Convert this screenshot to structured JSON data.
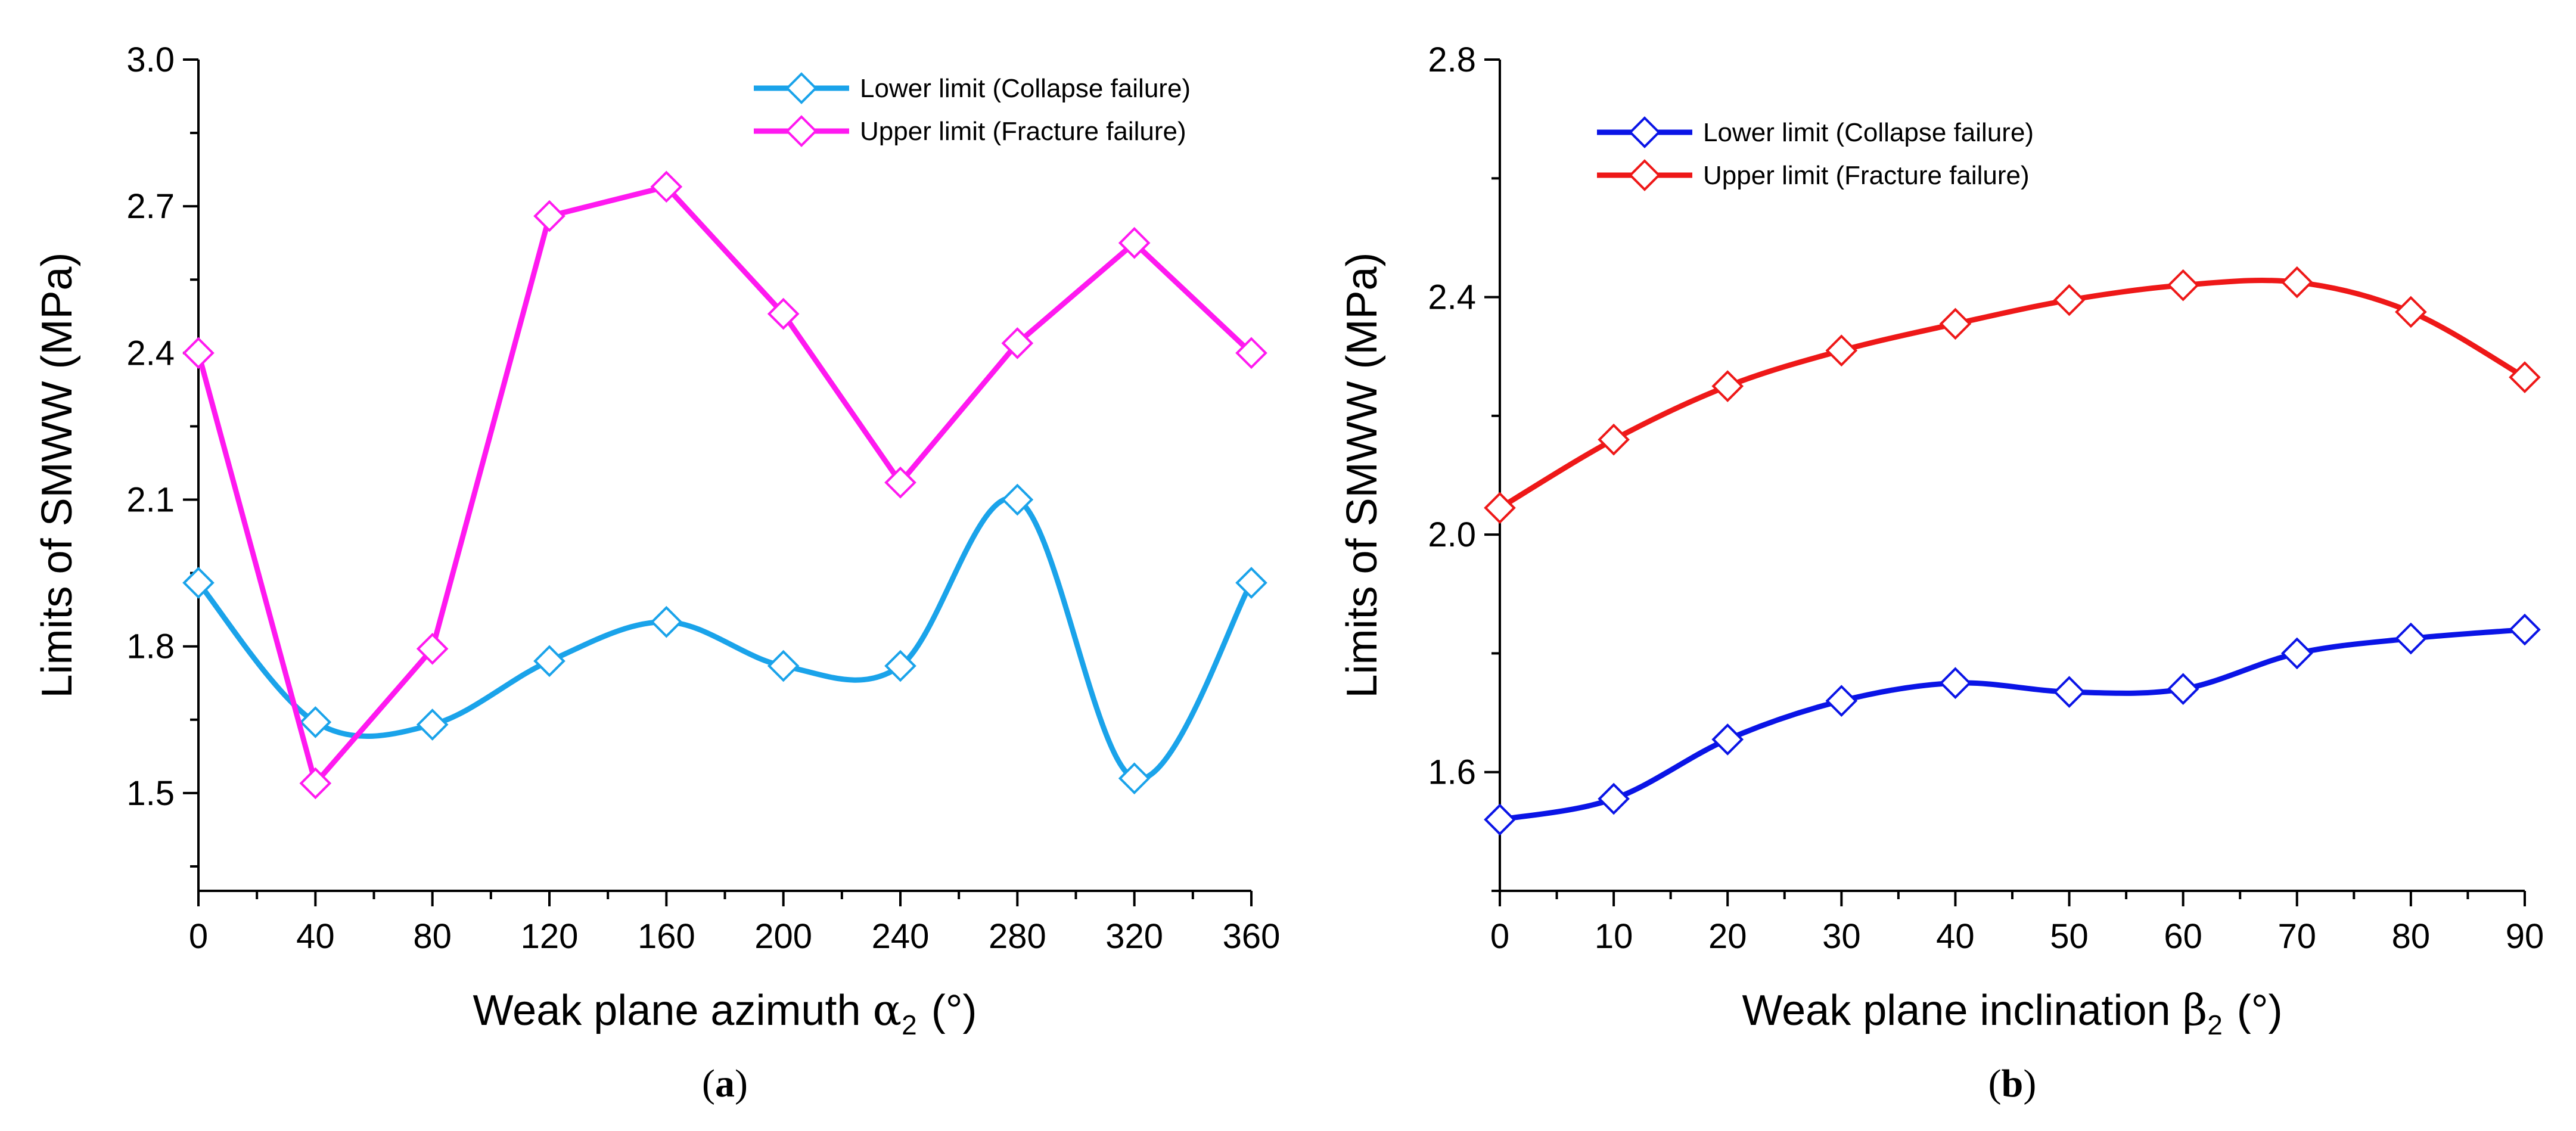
{
  "chart_data": [
    {
      "type": "line",
      "panel_label": "a",
      "title": "",
      "xlabel_main": "Weak plane azimuth ",
      "xlabel_symbol": "α",
      "xlabel_subscript": "2",
      "xlabel_unit": "(°)",
      "ylabel": "Limits of SMWW  (MPa)",
      "xlim": [
        0,
        360
      ],
      "ylim": [
        1.3,
        3.0
      ],
      "x_ticks": [
        0,
        40,
        80,
        120,
        160,
        200,
        240,
        280,
        320,
        360
      ],
      "x_tick_labels": [
        "0",
        "40",
        "80",
        "120",
        "160",
        "200",
        "240",
        "280",
        "320",
        "360"
      ],
      "y_ticks": [
        1.5,
        1.8,
        2.1,
        2.4,
        2.7,
        3.0
      ],
      "y_tick_labels": [
        "1.5",
        "1.8",
        "2.1",
        "2.4",
        "2.7",
        "3.0"
      ],
      "legend_position": "top-right",
      "x": [
        0,
        40,
        80,
        120,
        160,
        200,
        240,
        280,
        320,
        360
      ],
      "series": [
        {
          "name": "Lower limit (Collapse failure)",
          "color": "#1aa3ea",
          "values": [
            1.93,
            1.645,
            1.64,
            1.77,
            1.85,
            1.76,
            1.76,
            2.1,
            1.53,
            1.93
          ]
        },
        {
          "name": "Upper limit (Fracture failure)",
          "color": "#ff19f0",
          "values": [
            2.4,
            1.52,
            1.795,
            2.68,
            2.74,
            2.48,
            2.135,
            2.42,
            2.625,
            2.4
          ]
        }
      ]
    },
    {
      "type": "line",
      "panel_label": "b",
      "title": "",
      "xlabel_main": "Weak plane inclination ",
      "xlabel_symbol": "β",
      "xlabel_subscript": "2",
      "xlabel_unit": "(°)",
      "ylabel": "Limits of SMWW  (MPa)",
      "xlim": [
        0,
        90
      ],
      "ylim": [
        1.4,
        2.8
      ],
      "x_ticks": [
        0,
        10,
        20,
        30,
        40,
        50,
        60,
        70,
        80,
        90
      ],
      "x_tick_labels": [
        "0",
        "10",
        "20",
        "30",
        "40",
        "50",
        "60",
        "70",
        "80",
        "90"
      ],
      "y_ticks": [
        1.6,
        2.0,
        2.4,
        2.8
      ],
      "y_tick_labels": [
        "1.6",
        "2.0",
        "2.4",
        "2.8"
      ],
      "legend_position": "top-left",
      "x": [
        0,
        10,
        20,
        30,
        40,
        50,
        60,
        70,
        80,
        90
      ],
      "series": [
        {
          "name": "Lower limit (Collapse failure)",
          "color": "#0a14e6",
          "values": [
            1.52,
            1.555,
            1.655,
            1.72,
            1.75,
            1.735,
            1.74,
            1.8,
            1.825,
            1.84
          ]
        },
        {
          "name": "Upper limit (Fracture failure)",
          "color": "#ee1818",
          "values": [
            2.045,
            2.16,
            2.25,
            2.31,
            2.355,
            2.395,
            2.42,
            2.425,
            2.375,
            2.265
          ]
        }
      ]
    }
  ]
}
